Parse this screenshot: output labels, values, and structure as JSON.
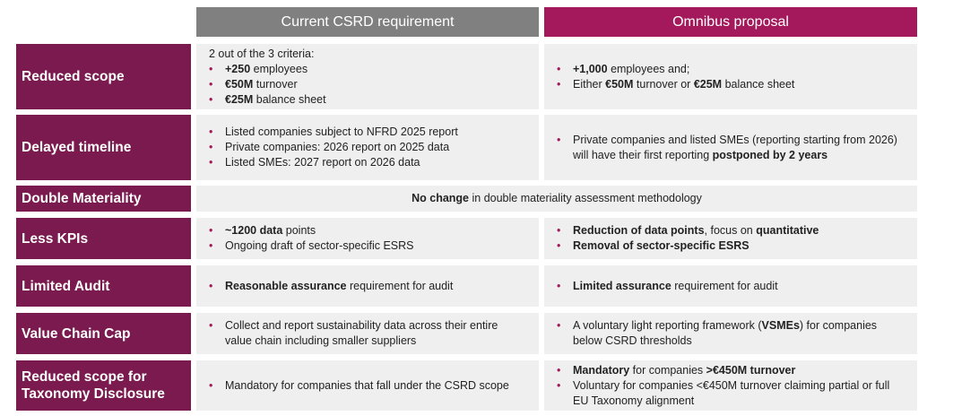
{
  "header": {
    "current": "Current CSRD requirement",
    "omnibus": "Omnibus proposal"
  },
  "rows": [
    {
      "label": "Reduced scope",
      "current": {
        "intro": "2 out of the 3 criteria:",
        "bullets": [
          [
            {
              "text": "+250",
              "bold": true
            },
            {
              "text": " employees"
            }
          ],
          [
            {
              "text": "€50M",
              "bold": true
            },
            {
              "text": " turnover"
            }
          ],
          [
            {
              "text": "€25M",
              "bold": true
            },
            {
              "text": " balance sheet"
            }
          ]
        ]
      },
      "omnibus": {
        "bullets": [
          [
            {
              "text": "+1,000",
              "bold": true
            },
            {
              "text": " employees and;"
            }
          ],
          [
            {
              "text": "Either "
            },
            {
              "text": "€50M",
              "bold": true
            },
            {
              "text": " turnover or "
            },
            {
              "text": "€25M",
              "bold": true
            },
            {
              "text": " balance sheet"
            }
          ]
        ]
      }
    },
    {
      "label": "Delayed timeline",
      "current": {
        "bullets": [
          [
            {
              "text": "Listed companies subject to NFRD 2025 report"
            }
          ],
          [
            {
              "text": "Private companies: 2026 report on 2025 data"
            }
          ],
          [
            {
              "text": "Listed SMEs: 2027 report on 2026 data"
            }
          ]
        ]
      },
      "omnibus": {
        "bullets": [
          [
            {
              "text": "Private companies and listed SMEs (reporting starting from 2026) will have their first reporting "
            },
            {
              "text": "postponed by 2 years",
              "bold": true
            }
          ]
        ]
      }
    },
    {
      "label": "Double Materiality",
      "merged": [
        {
          "text": "No change",
          "bold": true
        },
        {
          "text": " in double materiality assessment methodology"
        }
      ]
    },
    {
      "label": "Less KPIs",
      "current": {
        "bullets": [
          [
            {
              "text": "~1200 data",
              "bold": true
            },
            {
              "text": " points"
            }
          ],
          [
            {
              "text": "Ongoing draft of sector-specific ESRS"
            }
          ]
        ]
      },
      "omnibus": {
        "bullets": [
          [
            {
              "text": "Reduction of data points",
              "bold": true
            },
            {
              "text": ", focus on "
            },
            {
              "text": "quantitative",
              "bold": true
            }
          ],
          [
            {
              "text": "Removal of sector-specific ESRS",
              "bold": true
            }
          ]
        ]
      }
    },
    {
      "label": "Limited Audit",
      "current": {
        "bullets": [
          [
            {
              "text": "Reasonable assurance",
              "bold": true
            },
            {
              "text": " requirement for audit"
            }
          ]
        ]
      },
      "omnibus": {
        "bullets": [
          [
            {
              "text": "Limited assurance",
              "bold": true
            },
            {
              "text": " requirement for audit"
            }
          ]
        ]
      }
    },
    {
      "label": "Value Chain Cap",
      "current": {
        "bullets": [
          [
            {
              "text": "Collect and report sustainability data across their entire value chain including smaller suppliers"
            }
          ]
        ]
      },
      "omnibus": {
        "bullets": [
          [
            {
              "text": "A voluntary light reporting framework ("
            },
            {
              "text": "VSMEs",
              "bold": true
            },
            {
              "text": ") for companies below CSRD thresholds"
            }
          ]
        ]
      }
    },
    {
      "label": "Reduced scope for Taxonomy Disclosure",
      "current": {
        "bullets": [
          [
            {
              "text": "Mandatory for companies that fall under the CSRD scope"
            }
          ]
        ]
      },
      "omnibus": {
        "bullets": [
          [
            {
              "text": "Mandatory",
              "bold": true
            },
            {
              "text": " for companies "
            },
            {
              "text": ">€450M turnover",
              "bold": true
            }
          ],
          [
            {
              "text": "Voluntary for companies <€450M turnover claiming partial or full EU Taxonomy alignment"
            }
          ]
        ]
      }
    }
  ]
}
